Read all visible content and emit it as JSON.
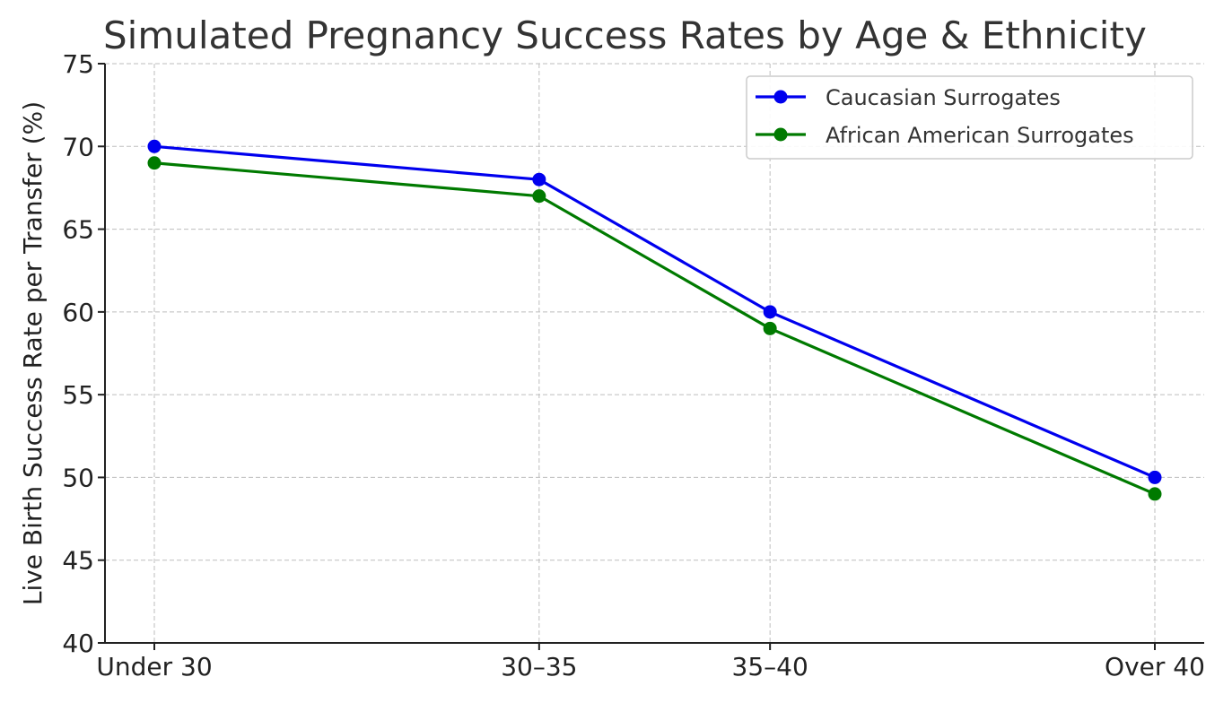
{
  "chart_data": {
    "type": "line",
    "title": "Simulated Pregnancy Success Rates by Age & Ethnicity",
    "xlabel": "",
    "ylabel": "Live Birth Success Rate per Transfer (%)",
    "categories": [
      "Under 30",
      "30–35",
      "35–40",
      "Over 40"
    ],
    "x": [
      30,
      35,
      38,
      43
    ],
    "xlim": [
      30,
      43
    ],
    "ylim": [
      40,
      75
    ],
    "yticks": [
      40,
      45,
      50,
      55,
      60,
      65,
      70,
      75
    ],
    "grid": true,
    "legend_position": "top-right",
    "series": [
      {
        "name": "Caucasian Surrogates",
        "values": [
          70,
          68,
          60,
          50
        ],
        "color": "#0000ee",
        "marker": "circle"
      },
      {
        "name": "African American Surrogates",
        "values": [
          69,
          67,
          59,
          49
        ],
        "color": "#007a00",
        "marker": "circle"
      }
    ]
  }
}
